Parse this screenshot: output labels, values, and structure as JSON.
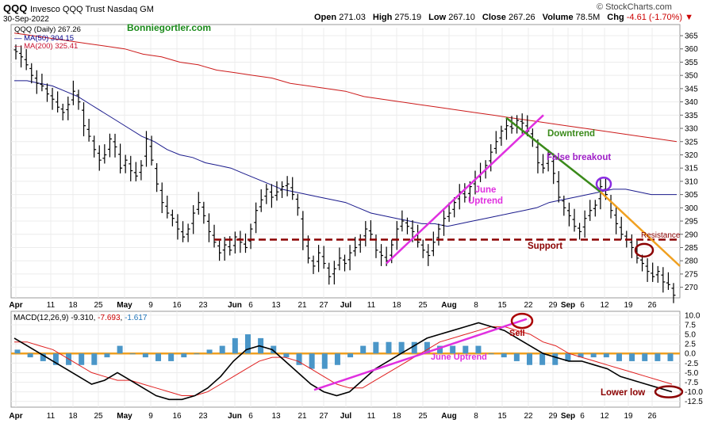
{
  "header": {
    "symbol": "QQQ",
    "description": "Invesco QQQ Trust Nasdaq GM",
    "date": "30-Sep-2022",
    "open_label": "Open",
    "open": "271.03",
    "high_label": "High",
    "high": "275.19",
    "low_label": "Low",
    "low": "267.10",
    "close_label": "Close",
    "close": "267.26",
    "volume_label": "Volume",
    "volume": "78.5M",
    "chg_label": "Chg",
    "chg": "-4.61 (-1.70%)",
    "chg_arrow": "▼",
    "brand": "© StockCharts.com"
  },
  "legend": {
    "price": "QQQ (Daily) 267.26",
    "ma50": "MA(50) 304.15",
    "ma200": "MA(200) 325.41",
    "site": "Bonniegortler.com"
  },
  "macd_legend": {
    "label": "MACD(12,26,9)",
    "macd": "-9.310",
    "signal": "-7.693",
    "hist": "-1.617"
  },
  "annotations": {
    "downtrend": "Downtrend",
    "false_breakout": "False breakout",
    "june_uptrend": "June Uptrend",
    "resistance": "Resistance",
    "support": "Support",
    "sell": "Sell",
    "macd_june_uptrend": "June Uptrend",
    "lower_low": "Lower low"
  },
  "colors": {
    "ma50": "#1a1a8c",
    "ma200": "#cc1a1a",
    "macd_line": "#000000",
    "signal_line": "#e02020",
    "histogram": "#4a96c8",
    "uptrend": "#e030e0",
    "downtrend": "#3a8a1a",
    "resistance_line": "#f0a020",
    "support_line": "#8b0000",
    "macd_zero_line": "#f0a020"
  },
  "chart_data": [
    {
      "type": "ohlc",
      "ylim": [
        266,
        368
      ],
      "y_ticks": [
        270,
        275,
        280,
        285,
        290,
        295,
        300,
        305,
        310,
        315,
        320,
        325,
        330,
        335,
        340,
        345,
        350,
        355,
        360,
        365
      ],
      "x_ticks": [
        "Apr",
        "11",
        "18",
        "25",
        "May",
        "9",
        "16",
        "23",
        "Jun",
        "6",
        "13",
        "21",
        "27",
        "Jul",
        "11",
        "18",
        "25",
        "Aug",
        "8",
        "15",
        "22",
        "29",
        "Sep",
        "6",
        "12",
        "19",
        "26"
      ],
      "series": [
        {
          "kind": "close",
          "values": [
            359,
            357,
            354,
            350,
            347,
            346,
            343,
            341,
            338,
            336,
            339,
            344,
            340,
            331,
            327,
            322,
            318,
            320,
            326,
            323,
            315,
            318,
            314,
            312,
            316,
            326,
            318,
            309,
            302,
            298,
            296,
            292,
            289,
            292,
            298,
            302,
            297,
            291,
            287,
            283,
            286,
            284,
            289,
            287,
            285,
            292,
            299,
            303,
            307,
            304,
            306,
            308,
            309,
            305,
            300,
            288,
            281,
            278,
            283,
            279,
            274,
            277,
            281,
            279,
            283,
            285,
            288,
            292,
            290,
            284,
            282,
            280,
            286,
            292,
            295,
            293,
            291,
            287,
            284,
            282,
            287,
            292,
            296,
            298,
            302,
            306,
            304,
            308,
            311,
            313,
            316,
            321,
            325,
            329,
            331,
            330,
            333,
            332,
            329,
            326,
            317,
            315,
            320,
            313,
            304,
            300,
            297,
            293,
            291,
            296,
            299,
            301,
            308,
            305,
            299,
            294,
            290,
            288,
            285,
            281,
            279,
            276,
            274,
            276,
            272,
            271,
            267
          ]
        },
        {
          "kind": "ma50",
          "values": [
            348,
            348,
            347,
            346,
            344,
            342,
            339,
            336,
            333,
            330,
            327,
            325,
            322,
            320,
            319,
            317,
            316,
            315,
            313,
            311,
            309,
            307,
            306,
            305,
            304,
            303,
            302,
            300,
            298,
            297,
            296,
            295,
            294,
            294,
            293,
            294,
            295,
            296,
            297,
            298,
            299,
            300,
            302,
            303,
            304,
            305,
            306,
            307,
            307,
            306,
            305,
            305,
            305
          ]
        },
        {
          "kind": "ma200",
          "values": [
            366,
            365,
            364,
            363,
            362,
            361,
            360,
            358,
            357,
            355,
            354,
            352,
            351,
            350,
            349,
            347,
            346,
            345,
            344,
            342,
            341,
            340,
            339,
            338,
            337,
            336,
            335,
            334,
            333,
            332,
            331,
            330,
            329,
            328,
            327,
            326,
            325
          ]
        }
      ]
    },
    {
      "type": "macd",
      "ylim": [
        -14,
        11
      ],
      "y_ticks": [
        10.0,
        7.5,
        5.0,
        2.5,
        0.0,
        -2.5,
        -5.0,
        -7.5,
        -10.0,
        -12.5
      ],
      "x_ticks": [
        "Apr",
        "11",
        "18",
        "25",
        "May",
        "9",
        "16",
        "23",
        "Jun",
        "6",
        "13",
        "21",
        "27",
        "Jul",
        "11",
        "18",
        "25",
        "Aug",
        "8",
        "15",
        "22",
        "29",
        "Sep",
        "6",
        "12",
        "19",
        "26"
      ],
      "series": [
        {
          "name": "MACD",
          "values": [
            4,
            2,
            0,
            -2,
            -4,
            -6,
            -8,
            -7,
            -5,
            -7,
            -9,
            -11,
            -12,
            -12,
            -11,
            -9,
            -6,
            -2,
            1,
            2,
            1,
            -2,
            -5,
            -8,
            -10,
            -11,
            -10,
            -7,
            -4,
            -2,
            0,
            2,
            4,
            5,
            6,
            7,
            8,
            7,
            6,
            4,
            2,
            0,
            -1,
            -2,
            -2,
            -3,
            -4,
            -6,
            -7,
            -8,
            -9,
            -10
          ]
        },
        {
          "name": "Signal",
          "values": [
            3,
            3,
            2,
            1,
            -1,
            -3,
            -5,
            -6,
            -7,
            -7,
            -8,
            -9,
            -10,
            -11,
            -11,
            -10,
            -8,
            -6,
            -4,
            -2,
            -1,
            -1,
            -2,
            -4,
            -6,
            -8,
            -9,
            -9,
            -7,
            -5,
            -3,
            -1,
            1,
            3,
            4,
            5,
            6,
            7,
            7,
            6,
            5,
            3,
            2,
            0,
            -1,
            -2,
            -3,
            -4,
            -5,
            -6,
            -7,
            -8
          ]
        },
        {
          "name": "Histogram",
          "values": [
            1,
            -1,
            -2,
            -3,
            -3,
            -3,
            -3,
            -1,
            2,
            0,
            -1,
            -2,
            -2,
            -1,
            0,
            1,
            2,
            4,
            5,
            4,
            2,
            -1,
            -3,
            -4,
            -4,
            -3,
            -1,
            2,
            3,
            3,
            3,
            3,
            3,
            2,
            2,
            2,
            2,
            0,
            -1,
            -2,
            -3,
            -3,
            -3,
            -2,
            -1,
            -1,
            -1,
            -2,
            -2,
            -2,
            -2,
            -2
          ]
        }
      ]
    }
  ]
}
